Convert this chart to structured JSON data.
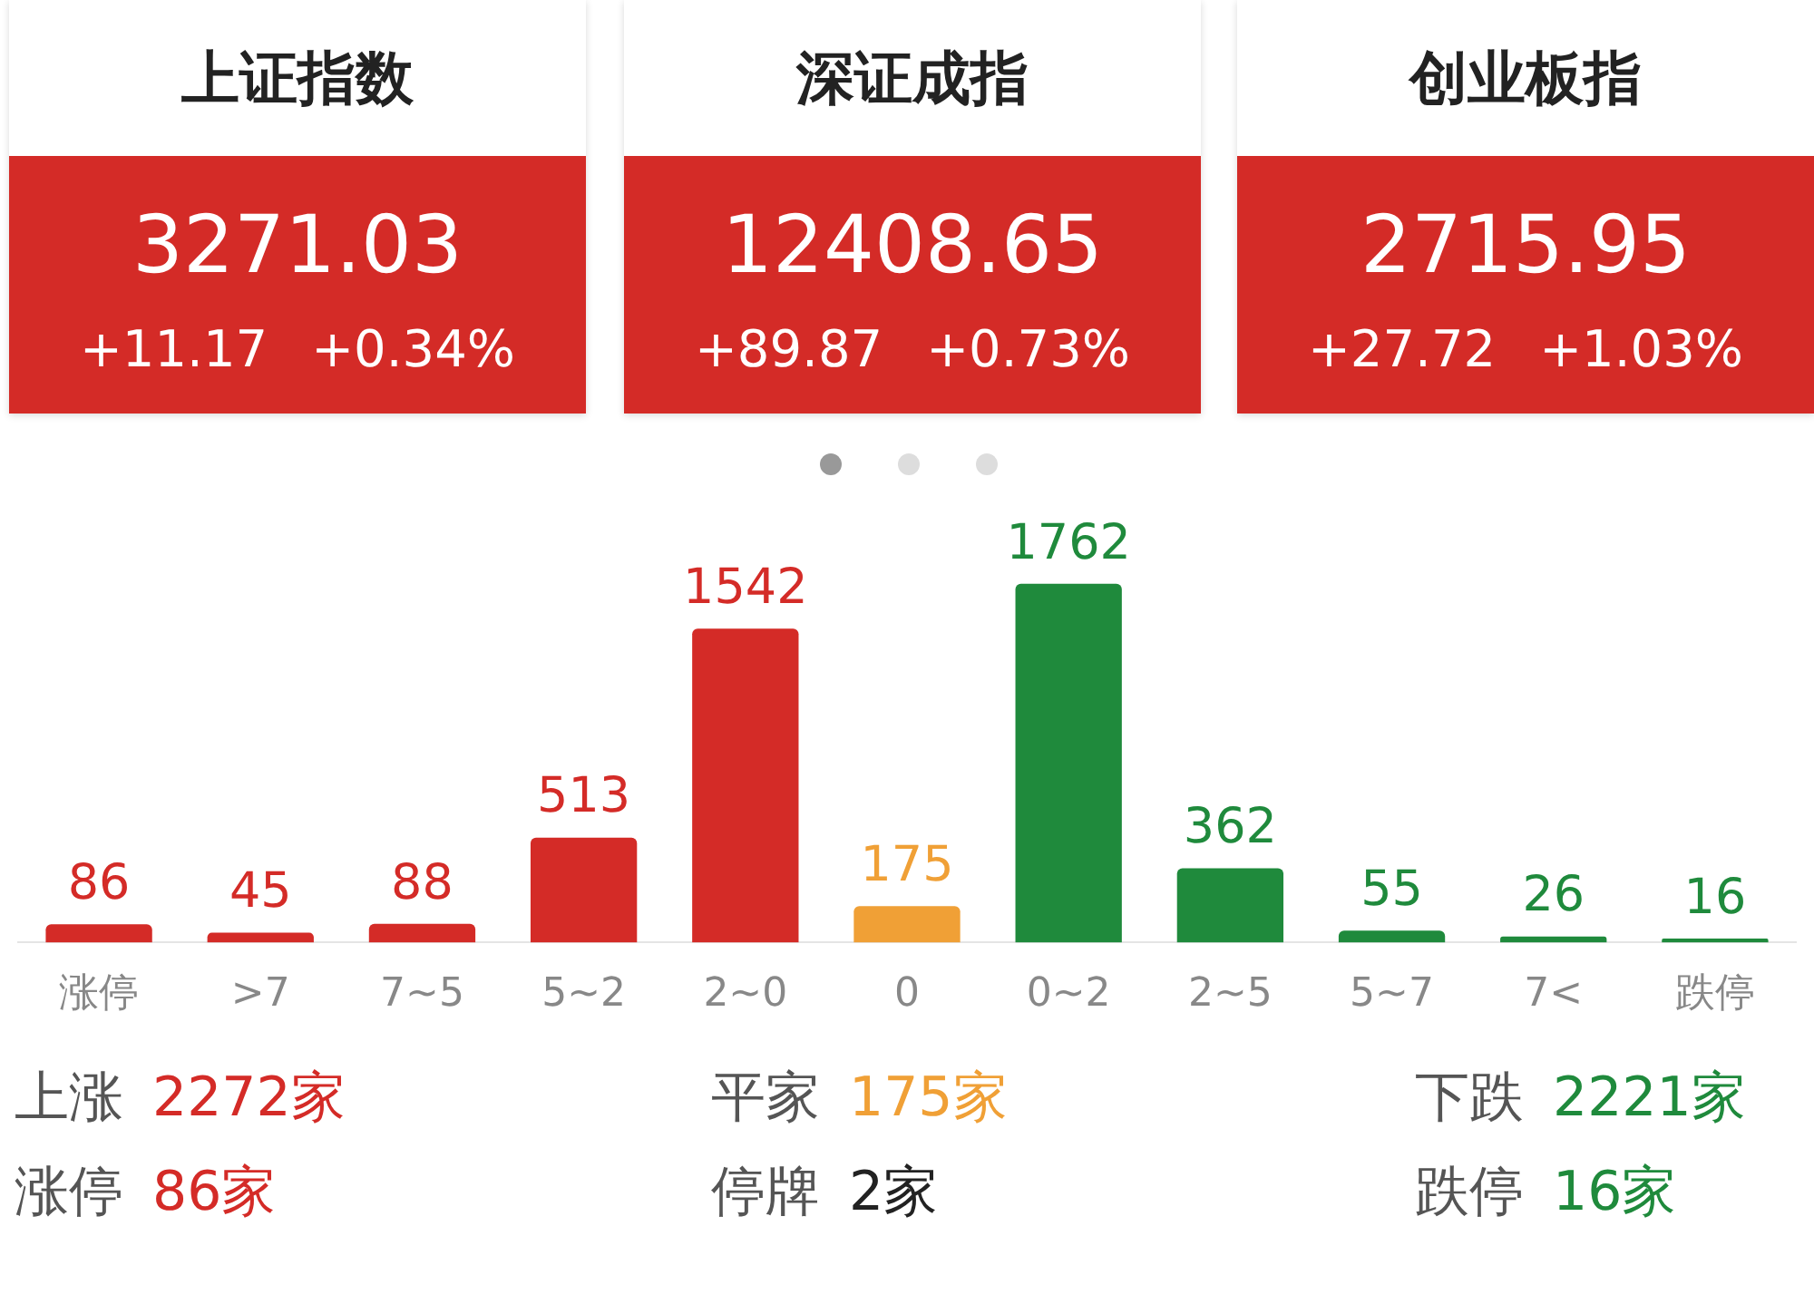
{
  "chart_data": [
    {
      "type": "other",
      "title": "上证指数",
      "annotations": [
        "3271.03",
        "+11.17",
        "+0.34%"
      ],
      "color": "#d42b27"
    },
    {
      "type": "other",
      "title": "深证成指",
      "annotations": [
        "12408.65",
        "+89.87",
        "+0.73%"
      ],
      "color": "#d42b27"
    },
    {
      "type": "other",
      "title": "创业板指",
      "annotations": [
        "2715.95",
        "+27.72",
        "+1.03%"
      ],
      "color": "#d42b27"
    },
    {
      "type": "bar",
      "categories": [
        "涨停",
        ">7",
        "7~5",
        "5~2",
        "2~0",
        "0",
        "0~2",
        "2~5",
        "5~7",
        "7<",
        "跌停"
      ],
      "values": [
        86,
        45,
        88,
        513,
        1542,
        175,
        1762,
        362,
        55,
        26,
        16
      ],
      "colors": [
        "#d42b27",
        "#d42b27",
        "#d42b27",
        "#d42b27",
        "#d42b27",
        "#f0a036",
        "#1f8a3c",
        "#1f8a3c",
        "#1f8a3c",
        "#1f8a3c",
        "#1f8a3c"
      ],
      "data_labels": true,
      "legend": false,
      "grid": false
    },
    {
      "type": "other",
      "annotations": [
        "上涨",
        "2272家",
        "平家",
        "175家",
        "下跌",
        "2221家",
        "涨停",
        "86家",
        "停牌",
        "2家",
        "跌停",
        "16家"
      ],
      "colors": [
        "#555555",
        "#d42b27",
        "#555555",
        "#f0a036",
        "#555555",
        "#1f8a3c",
        "#555555",
        "#d42b27",
        "#555555",
        "#222222",
        "#555555",
        "#1f8a3c"
      ]
    }
  ]
}
